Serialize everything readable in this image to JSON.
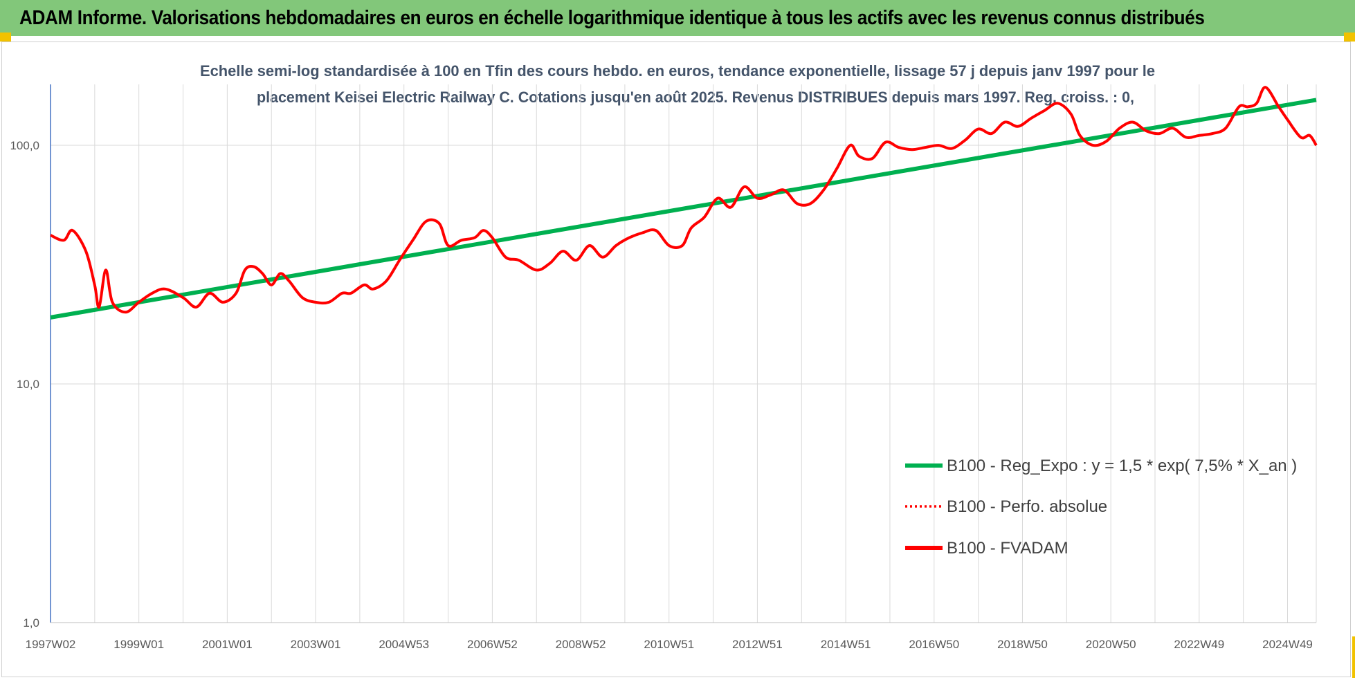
{
  "banner": {
    "title": "ADAM Informe. Valorisations hebdomadaires en euros en échelle logarithmique identique à tous les actifs avec les revenus connus distribués"
  },
  "colors": {
    "banner_bg": "#82c77a",
    "trend": "#00b050",
    "fvadam": "#ff0000",
    "perfo": "#ff0000",
    "grid": "#d9d9d9",
    "axis": "#4472c4"
  },
  "chart_data": {
    "type": "line",
    "title_lines": [
      "Echelle semi-log standardisée à 100 en Tfin des cours hebdo. en euros, tendance exponentielle, lissage 57 j depuis janv 1997 pour le",
      "placement Keisei Electric Railway C. Cotations jusqu'en août 2025. Revenus DISTRIBUES depuis mars 1997. Reg. croiss. : 0,"
    ],
    "y_scale": "log",
    "ylim": [
      1,
      180
    ],
    "y_ticks": [
      {
        "value": 100,
        "label": "100,0"
      },
      {
        "value": 10,
        "label": "10,0"
      },
      {
        "value": 1,
        "label": "1,0"
      }
    ],
    "x_range": [
      1997.0,
      2025.65
    ],
    "x_tick_labels": [
      {
        "x": 1997.0,
        "label": "1997W02"
      },
      {
        "x": 1999.0,
        "label": "1999W01"
      },
      {
        "x": 2001.0,
        "label": "2001W01"
      },
      {
        "x": 2003.0,
        "label": "2003W01"
      },
      {
        "x": 2005.0,
        "label": "2004W53"
      },
      {
        "x": 2007.0,
        "label": "2006W52"
      },
      {
        "x": 2009.0,
        "label": "2008W52"
      },
      {
        "x": 2011.0,
        "label": "2010W51"
      },
      {
        "x": 2013.0,
        "label": "2012W51"
      },
      {
        "x": 2015.0,
        "label": "2014W51"
      },
      {
        "x": 2017.0,
        "label": "2016W50"
      },
      {
        "x": 2019.0,
        "label": "2018W50"
      },
      {
        "x": 2021.0,
        "label": "2020W50"
      },
      {
        "x": 2023.0,
        "label": "2022W49"
      },
      {
        "x": 2025.0,
        "label": "2024W49"
      }
    ],
    "x_gridlines": [
      1997,
      1998,
      1999,
      2000,
      2001,
      2002,
      2003,
      2004,
      2005,
      2006,
      2007,
      2008,
      2009,
      2010,
      2011,
      2012,
      2013,
      2014,
      2015,
      2016,
      2017,
      2018,
      2019,
      2020,
      2021,
      2022,
      2023,
      2024,
      2025,
      2025.65
    ],
    "grid": true,
    "legend_position": "right",
    "series": [
      {
        "name": "B100 - Reg_Expo : y = 1,5 * exp( 7,5% *  X_an )",
        "style": "solid",
        "x": [
          1997.0,
          2025.65
        ],
        "y": [
          19.0,
          155.0
        ]
      },
      {
        "name": "B100 - Perfo. absolue",
        "style": "dotted",
        "x": [
          1997.0,
          1997.3,
          1997.5,
          1997.8,
          1998.0,
          1998.1,
          1998.25,
          1998.4,
          1998.7,
          1999.0,
          1999.3,
          1999.6,
          2000.0,
          2000.3,
          2000.6,
          2000.9,
          2001.2,
          2001.4,
          2001.6,
          2001.8,
          2002.0,
          2002.2,
          2002.4,
          2002.7,
          2003.0,
          2003.3,
          2003.6,
          2003.8,
          2004.1,
          2004.3,
          2004.6,
          2004.9,
          2005.2,
          2005.5,
          2005.8,
          2006.0,
          2006.3,
          2006.6,
          2006.8,
          2007.0,
          2007.3,
          2007.6,
          2008.0,
          2008.3,
          2008.6,
          2008.9,
          2009.2,
          2009.5,
          2009.8,
          2010.1,
          2010.4,
          2010.7,
          2011.0,
          2011.3,
          2011.5,
          2011.8,
          2012.1,
          2012.4,
          2012.7,
          2013.0,
          2013.3,
          2013.6,
          2013.9,
          2014.2,
          2014.5,
          2014.8,
          2015.1,
          2015.3,
          2015.6,
          2015.9,
          2016.2,
          2016.5,
          2016.8,
          2017.1,
          2017.4,
          2017.7,
          2018.0,
          2018.3,
          2018.6,
          2018.9,
          2019.2,
          2019.5,
          2019.8,
          2020.1,
          2020.3,
          2020.6,
          2020.9,
          2021.2,
          2021.5,
          2021.8,
          2022.1,
          2022.4,
          2022.7,
          2023.0,
          2023.3,
          2023.6,
          2023.9,
          2024.1,
          2024.3,
          2024.5,
          2024.8,
          2025.0,
          2025.3,
          2025.5,
          2025.65
        ],
        "y": [
          42,
          40,
          44,
          36,
          26,
          21,
          30,
          22,
          20,
          22,
          24,
          25,
          23,
          21,
          24,
          22,
          24,
          30,
          31,
          29,
          26,
          29,
          27,
          23,
          22,
          22,
          24,
          24,
          26,
          25,
          27,
          33,
          40,
          48,
          47,
          38,
          40,
          41,
          44,
          41,
          34,
          33,
          30,
          32,
          36,
          33,
          38,
          34,
          38,
          41,
          43,
          44,
          38,
          38,
          45,
          50,
          60,
          55,
          67,
          60,
          62,
          65,
          57,
          57,
          65,
          80,
          100,
          90,
          88,
          103,
          98,
          96,
          98,
          100,
          97,
          105,
          117,
          112,
          125,
          120,
          130,
          140,
          150,
          135,
          110,
          100,
          104,
          118,
          125,
          115,
          112,
          118,
          108,
          110,
          112,
          118,
          145,
          145,
          150,
          175,
          145,
          128,
          108,
          110,
          100
        ],
        "visible": false
      },
      {
        "name": "B100 - FVADAM",
        "style": "solid",
        "x": [
          1997.0,
          1997.3,
          1997.5,
          1997.8,
          1998.0,
          1998.1,
          1998.25,
          1998.4,
          1998.7,
          1999.0,
          1999.3,
          1999.6,
          2000.0,
          2000.3,
          2000.6,
          2000.9,
          2001.2,
          2001.4,
          2001.6,
          2001.8,
          2002.0,
          2002.2,
          2002.4,
          2002.7,
          2003.0,
          2003.3,
          2003.6,
          2003.8,
          2004.1,
          2004.3,
          2004.6,
          2004.9,
          2005.2,
          2005.5,
          2005.8,
          2006.0,
          2006.3,
          2006.6,
          2006.8,
          2007.0,
          2007.3,
          2007.6,
          2008.0,
          2008.3,
          2008.6,
          2008.9,
          2009.2,
          2009.5,
          2009.8,
          2010.1,
          2010.4,
          2010.7,
          2011.0,
          2011.3,
          2011.5,
          2011.8,
          2012.1,
          2012.4,
          2012.7,
          2013.0,
          2013.3,
          2013.6,
          2013.9,
          2014.2,
          2014.5,
          2014.8,
          2015.1,
          2015.3,
          2015.6,
          2015.9,
          2016.2,
          2016.5,
          2016.8,
          2017.1,
          2017.4,
          2017.7,
          2018.0,
          2018.3,
          2018.6,
          2018.9,
          2019.2,
          2019.5,
          2019.8,
          2020.1,
          2020.3,
          2020.6,
          2020.9,
          2021.2,
          2021.5,
          2021.8,
          2022.1,
          2022.4,
          2022.7,
          2023.0,
          2023.3,
          2023.6,
          2023.9,
          2024.1,
          2024.3,
          2024.5,
          2024.8,
          2025.0,
          2025.3,
          2025.5,
          2025.65
        ],
        "y": [
          42,
          40,
          44,
          36,
          26,
          21,
          30,
          22,
          20,
          22,
          24,
          25,
          23,
          21,
          24,
          22,
          24,
          30,
          31,
          29,
          26,
          29,
          27,
          23,
          22,
          22,
          24,
          24,
          26,
          25,
          27,
          33,
          40,
          48,
          47,
          38,
          40,
          41,
          44,
          41,
          34,
          33,
          30,
          32,
          36,
          33,
          38,
          34,
          38,
          41,
          43,
          44,
          38,
          38,
          45,
          50,
          60,
          55,
          67,
          60,
          62,
          65,
          57,
          57,
          65,
          80,
          100,
          90,
          88,
          103,
          98,
          96,
          98,
          100,
          97,
          105,
          117,
          112,
          125,
          120,
          130,
          140,
          150,
          135,
          110,
          100,
          104,
          118,
          125,
          115,
          112,
          118,
          108,
          110,
          112,
          118,
          145,
          145,
          150,
          175,
          145,
          128,
          108,
          110,
          100
        ]
      }
    ]
  }
}
